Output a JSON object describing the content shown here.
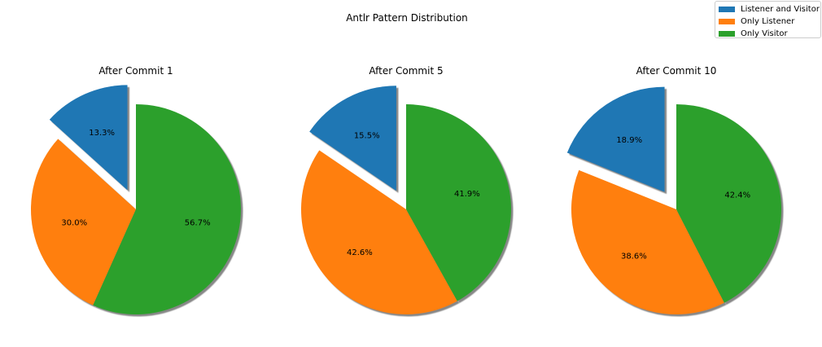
{
  "chart_data": {
    "type": "pie",
    "title": "Antlr Pattern Distribution",
    "legend": {
      "placement": "top-right",
      "entries": [
        "Listener and Visitor",
        "Only Listener",
        "Only Visitor"
      ]
    },
    "colors": [
      "#1f77b4",
      "#ff7f0e",
      "#2ca02c"
    ],
    "shadow": true,
    "start_angle": 90,
    "explode": [
      0.2,
      0,
      0
    ],
    "categories": [
      "Listener and Visitor",
      "Only Listener",
      "Only Visitor"
    ],
    "pies": [
      {
        "title": "After Commit 1",
        "values": [
          13.3,
          30.0,
          56.7
        ],
        "labels": [
          "13.3%",
          "30.0%",
          "56.7%"
        ]
      },
      {
        "title": "After Commit 5",
        "values": [
          15.5,
          42.6,
          41.9
        ],
        "labels": [
          "15.5%",
          "42.6%",
          "41.9%"
        ]
      },
      {
        "title": "After Commit 10",
        "values": [
          18.9,
          38.6,
          42.4
        ],
        "labels": [
          "18.9%",
          "38.6%",
          "42.4%"
        ]
      }
    ]
  }
}
